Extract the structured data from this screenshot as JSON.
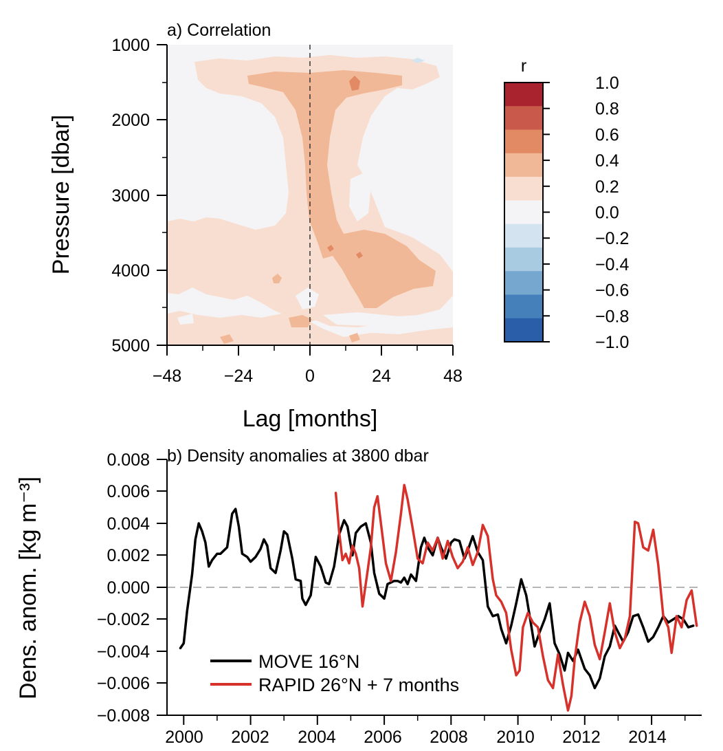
{
  "chart_data": [
    {
      "type": "heatmap",
      "panel_title": "a) Correlation",
      "xlabel": "Lag [months]",
      "ylabel": "Pressure [dbar]",
      "xlim": [
        -48,
        48
      ],
      "ylim": [
        5000,
        1000
      ],
      "y_inverted": true,
      "xticks": [
        "−48",
        "−24",
        "0",
        "24",
        "48"
      ],
      "yticks": [
        "1000",
        "2000",
        "3000",
        "4000",
        "5000"
      ],
      "zero_line": "dashed vertical at lag 0",
      "colorbar": {
        "label": "r",
        "ticks": [
          "1.0",
          "0.8",
          "0.6",
          "0.4",
          "0.2",
          "0.0",
          "−0.2",
          "−0.4",
          "−0.6",
          "−0.8",
          "−1.0"
        ],
        "levels": [
          {
            "range": [
              0.8,
              1.0
            ],
            "color": "#a8232e"
          },
          {
            "range": [
              0.6,
              0.8
            ],
            "color": "#c8594b"
          },
          {
            "range": [
              0.4,
              0.6
            ],
            "color": "#e28a63"
          },
          {
            "range": [
              0.2,
              0.4
            ],
            "color": "#f0b896"
          },
          {
            "range": [
              0.0,
              0.2
            ],
            "color": "#f8ded0"
          },
          {
            "range": [
              -0.2,
              0.0
            ],
            "color": "#f4f4f6"
          },
          {
            "range": [
              -0.4,
              -0.2
            ],
            "color": "#d3e3ef"
          },
          {
            "range": [
              -0.6,
              -0.4
            ],
            "color": "#a9cbe2"
          },
          {
            "range": [
              -0.8,
              -0.6
            ],
            "color": "#76a8cf"
          },
          {
            "range": [
              -1.0,
              -0.8
            ],
            "color": "#4580ba"
          },
          {
            "range": [
              -1.2,
              -1.0
            ],
            "color": "#2a5ea9"
          }
        ]
      }
    },
    {
      "type": "line",
      "panel_title": "b) Density anomalies at 3800 dbar",
      "ylabel": "Dens. anom. [kg m⁻³]",
      "xlim": [
        2000,
        2016
      ],
      "ylim": [
        -0.008,
        0.008
      ],
      "xticks": [
        "2000",
        "2002",
        "2004",
        "2006",
        "2008",
        "2010",
        "2012",
        "2014"
      ],
      "yticks": [
        "0.008",
        "0.006",
        "0.004",
        "0.002",
        "0.000",
        "−0.002",
        "−0.004",
        "−0.006",
        "−0.008"
      ],
      "zero_line": "dashed grey at 0.000",
      "legend_position": "bottom-left",
      "series": [
        {
          "name": "MOVE 16°N",
          "color": "#000000",
          "x": [
            2000.4,
            2000.5,
            2000.6,
            2000.75,
            2000.85,
            2000.95,
            2001.05,
            2001.15,
            2001.25,
            2001.35,
            2001.5,
            2001.6,
            2001.8,
            2001.95,
            2002.05,
            2002.15,
            2002.25,
            2002.4,
            2002.5,
            2002.65,
            2002.8,
            2002.9,
            2003.0,
            2003.1,
            2003.25,
            2003.4,
            2003.5,
            2003.6,
            2003.75,
            2003.85,
            2004.0,
            2004.05,
            2004.15,
            2004.3,
            2004.45,
            2004.6,
            2004.75,
            2004.85,
            2005.0,
            2005.15,
            2005.3,
            2005.4,
            2005.55,
            2005.65,
            2005.8,
            2005.95,
            2006.1,
            2006.2,
            2006.35,
            2006.5,
            2006.6,
            2006.7,
            2006.8,
            2006.9,
            2007.0,
            2007.1,
            2007.2,
            2007.3,
            2007.45,
            2007.6,
            2007.7,
            2007.8,
            2007.95,
            2008.1,
            2008.2,
            2008.35,
            2008.5,
            2008.6,
            2008.75,
            2008.9,
            2009.0,
            2009.15,
            2009.3,
            2009.45,
            2009.6,
            2009.75,
            2009.9,
            2010.0,
            2010.15,
            2010.3,
            2010.45,
            2010.6,
            2010.75,
            2010.9,
            2011.0,
            2011.15,
            2011.3,
            2011.45,
            2011.6,
            2011.75,
            2011.9,
            2012.0,
            2012.15,
            2012.3,
            2012.5,
            2012.65,
            2012.8,
            2012.95,
            2013.1,
            2013.25,
            2013.4,
            2013.5,
            2013.65,
            2013.8,
            2013.95,
            2014.1,
            2014.25,
            2014.4,
            2014.55,
            2014.7,
            2014.85,
            2015.0,
            2015.15,
            2015.3,
            2015.45,
            2015.6,
            2015.75
          ],
          "y": [
            -0.0038,
            -0.0035,
            -0.0015,
            0.0008,
            0.003,
            0.004,
            0.0035,
            0.0028,
            0.0013,
            0.0017,
            0.0021,
            0.0021,
            0.0025,
            0.0046,
            0.0049,
            0.0038,
            0.0021,
            0.0019,
            0.0016,
            0.0019,
            0.0024,
            0.003,
            0.0026,
            0.0012,
            0.0009,
            0.0023,
            0.0035,
            0.0033,
            0.0018,
            0.0005,
            0.0004,
            -0.0007,
            -0.0011,
            -0.0005,
            0.0019,
            0.0013,
            0.0003,
            0.0002,
            0.0013,
            0.0033,
            0.0042,
            0.0038,
            0.002,
            0.0034,
            0.0038,
            0.004,
            0.0028,
            0.0009,
            -0.0004,
            -0.0007,
            0.0002,
            0.0003,
            0.0004,
            0.0004,
            0.0003,
            0.0006,
            0.0002,
            0.0008,
            0.0004,
            0.0025,
            0.0031,
            0.0025,
            0.002,
            0.0031,
            0.0025,
            0.0018,
            0.0028,
            0.003,
            0.0029,
            0.0018,
            0.0023,
            0.0032,
            0.0022,
            0.0017,
            -0.0012,
            -0.0018,
            -0.0017,
            -0.0026,
            -0.0035,
            -0.0024,
            -0.001,
            0.0005,
            -0.0005,
            -0.0024,
            -0.0037,
            -0.0028,
            -0.002,
            -0.001,
            -0.0035,
            -0.0042,
            -0.0052,
            -0.0041,
            -0.0046,
            -0.0039,
            -0.0051,
            -0.0055,
            -0.0063,
            -0.0057,
            -0.0043,
            -0.0037,
            -0.0024,
            -0.0028,
            -0.0034,
            -0.0028,
            -0.0018,
            -0.0017,
            -0.0025,
            -0.0034,
            -0.0031,
            -0.0025,
            -0.0018,
            -0.0022,
            -0.002,
            -0.0018,
            -0.002,
            -0.0025,
            -0.0024
          ]
        },
        {
          "name": "RAPID 26°N + 7 months",
          "color": "#d6322b",
          "x": [
            2005.05,
            2005.15,
            2005.25,
            2005.35,
            2005.45,
            2005.55,
            2005.65,
            2005.75,
            2005.85,
            2006.0,
            2006.1,
            2006.2,
            2006.3,
            2006.45,
            2006.55,
            2006.7,
            2006.85,
            2007.0,
            2007.1,
            2007.2,
            2007.35,
            2007.5,
            2007.65,
            2007.8,
            2007.95,
            2008.1,
            2008.25,
            2008.4,
            2008.55,
            2008.7,
            2008.85,
            2009.0,
            2009.15,
            2009.3,
            2009.45,
            2009.6,
            2009.75,
            2009.85,
            2010.0,
            2010.15,
            2010.3,
            2010.45,
            2010.55,
            2010.65,
            2010.8,
            2010.95,
            2011.1,
            2011.25,
            2011.4,
            2011.55,
            2011.7,
            2011.85,
            2012.0,
            2012.1,
            2012.2,
            2012.35,
            2012.5,
            2012.65,
            2012.8,
            2012.95,
            2013.1,
            2013.25,
            2013.4,
            2013.55,
            2013.7,
            2013.85,
            2014.0,
            2014.1,
            2014.25,
            2014.4,
            2014.55,
            2014.7,
            2014.85,
            2015.0,
            2015.1,
            2015.25,
            2015.4,
            2015.55,
            2015.7,
            2015.85
          ],
          "y": [
            0.0059,
            0.0035,
            0.0017,
            0.0021,
            0.0015,
            0.0026,
            0.0021,
            0.0012,
            -0.0012,
            0.001,
            0.0025,
            0.005,
            0.0057,
            0.0032,
            0.0015,
            0.0004,
            0.0022,
            0.0046,
            0.0064,
            0.0055,
            0.0037,
            0.0018,
            0.0015,
            0.0028,
            0.0023,
            0.0031,
            0.0018,
            0.0029,
            0.0019,
            0.0012,
            0.0016,
            0.0025,
            0.0014,
            0.0022,
            0.0039,
            0.0032,
            0.0005,
            -0.0005,
            -0.0009,
            -0.0016,
            -0.0039,
            -0.0055,
            -0.0052,
            -0.0025,
            -0.0016,
            -0.0022,
            -0.0025,
            -0.0043,
            -0.0058,
            -0.0063,
            -0.0042,
            -0.0061,
            -0.0077,
            -0.0068,
            -0.0045,
            -0.0022,
            -0.0009,
            -0.0018,
            -0.0036,
            -0.0045,
            -0.0028,
            -0.001,
            -0.0028,
            -0.0038,
            -0.0032,
            -0.0018,
            0.0041,
            0.004,
            0.0025,
            0.0023,
            0.0036,
            0.0014,
            -0.0018,
            -0.0025,
            -0.0041,
            -0.0018,
            -0.0025,
            -0.0008,
            -0.0002,
            -0.0024
          ]
        }
      ]
    }
  ]
}
